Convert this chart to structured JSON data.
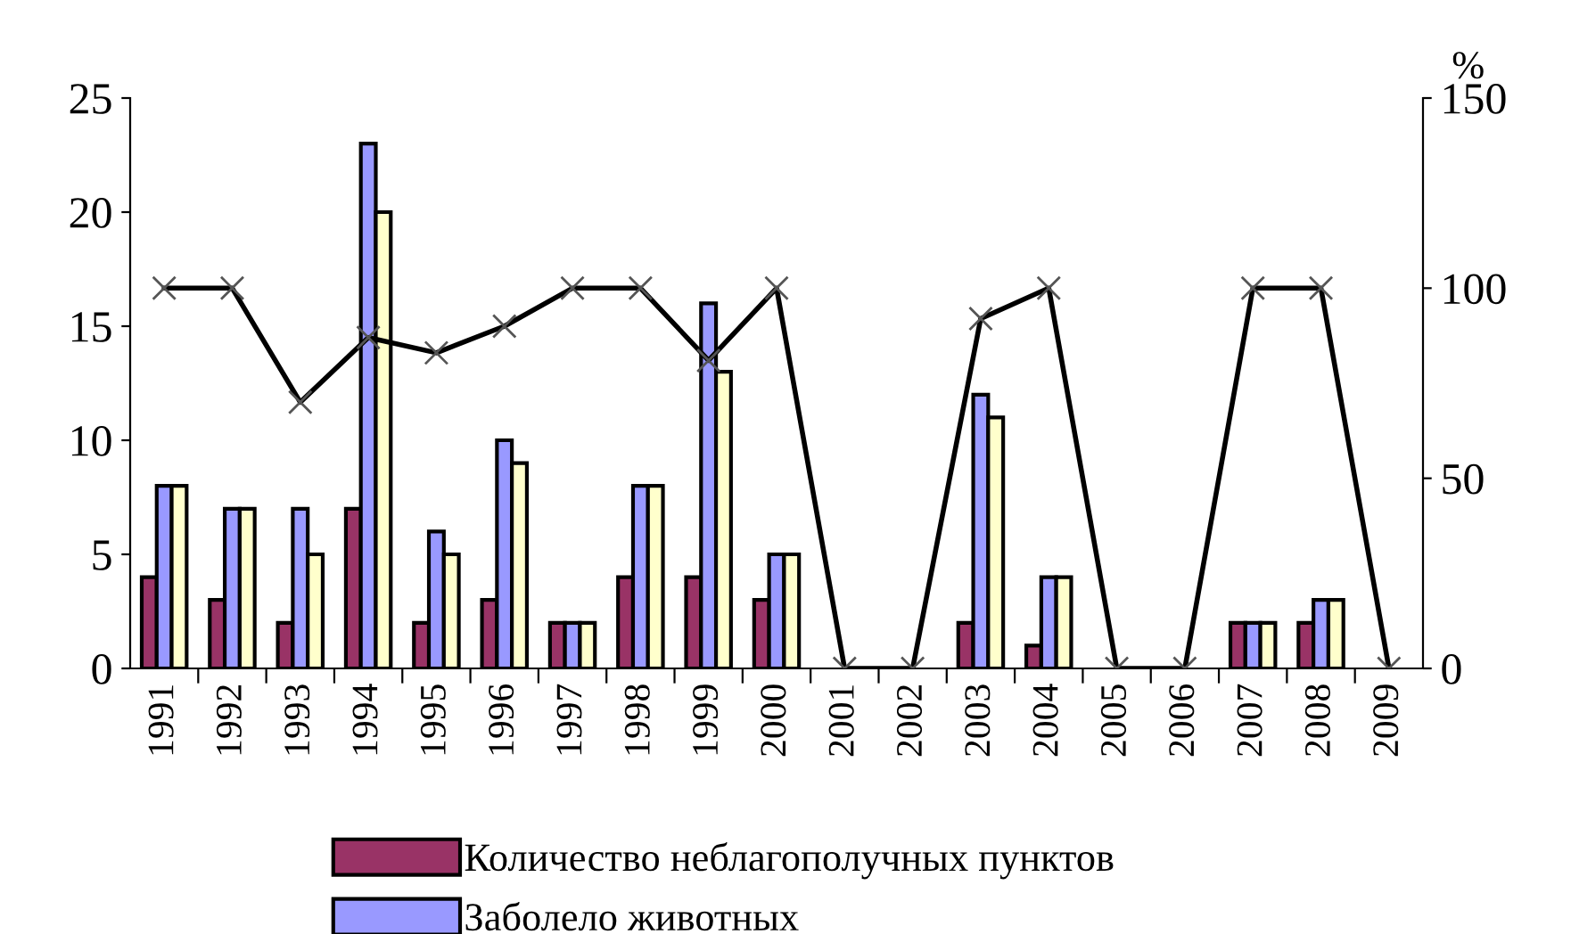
{
  "chart_data": {
    "type": "bar",
    "y2label": "%",
    "categories": [
      "1991",
      "1992",
      "1993",
      "1994",
      "1995",
      "1996",
      "1997",
      "1998",
      "1999",
      "2000",
      "2001",
      "2002",
      "2003",
      "2004",
      "2005",
      "2006",
      "2007",
      "2008",
      "2009"
    ],
    "series": [
      {
        "name": "Количество неблагополучных пунктов",
        "color": "#993366",
        "values": [
          4,
          3,
          2,
          7,
          2,
          3,
          2,
          4,
          4,
          3,
          0,
          0,
          2,
          1,
          0,
          0,
          2,
          2,
          0
        ]
      },
      {
        "name": "Заболело животных",
        "color": "#9999ff",
        "values": [
          8,
          7,
          7,
          23,
          6,
          10,
          2,
          8,
          16,
          5,
          0,
          0,
          12,
          4,
          0,
          0,
          2,
          3,
          0
        ]
      },
      {
        "color": "#ffffcc",
        "values": [
          8,
          7,
          5,
          20,
          5,
          9,
          2,
          8,
          13,
          5,
          0,
          0,
          11,
          4,
          0,
          0,
          2,
          3,
          0
        ]
      },
      {
        "type": "line",
        "axis": "y2",
        "color": "#000000",
        "marker": "cross",
        "values": [
          100,
          100,
          70,
          87,
          83,
          90,
          100,
          100,
          81,
          100,
          0,
          0,
          92,
          100,
          0,
          0,
          100,
          100,
          0
        ]
      }
    ],
    "ylim": [
      0,
      25
    ],
    "yticks": [
      0,
      5,
      10,
      15,
      20,
      25
    ],
    "y2lim": [
      0,
      150
    ],
    "y2ticks": [
      0,
      50,
      100,
      150
    ],
    "grid": false,
    "legend": "bottom"
  }
}
